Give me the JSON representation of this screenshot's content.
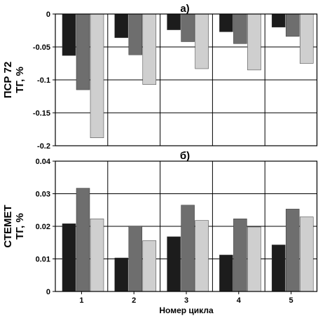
{
  "chart_data": [
    {
      "type": "bar",
      "title": "а)",
      "ylabel": [
        "ПСР 72",
        "ТГ, %"
      ],
      "categories": [
        "1",
        "2",
        "3",
        "4",
        "5"
      ],
      "ylim": [
        -0.2,
        0
      ],
      "yticks": [
        0,
        -0.05,
        -0.1,
        -0.15,
        -0.2
      ],
      "ytick_labels": [
        "0",
        "-0.05",
        "-0.1",
        "-0.15",
        "-0.2"
      ],
      "grid": true,
      "series": [
        {
          "values": [
            -0.063,
            -0.036,
            -0.024,
            -0.027,
            -0.02
          ],
          "color": "#1c1c1c"
        },
        {
          "values": [
            -0.115,
            -0.062,
            -0.042,
            -0.045,
            -0.034
          ],
          "color": "#6e6e6e"
        },
        {
          "values": [
            -0.188,
            -0.107,
            -0.083,
            -0.085,
            -0.075
          ],
          "color": "#cfcfcf"
        }
      ]
    },
    {
      "type": "bar",
      "title": "б)",
      "ylabel": [
        "СТЕМЕТ",
        "ТГ, %"
      ],
      "xlabel": "Номер цикла",
      "categories": [
        "1",
        "2",
        "3",
        "4",
        "5"
      ],
      "ylim": [
        0,
        0.04
      ],
      "yticks": [
        0,
        0.01,
        0.02,
        0.03,
        0.04
      ],
      "ytick_labels": [
        "0",
        "0.01",
        "0.02",
        "0.03",
        "0.04"
      ],
      "grid": true,
      "series": [
        {
          "values": [
            0.0208,
            0.0103,
            0.0168,
            0.0112,
            0.0143
          ],
          "color": "#1c1c1c"
        },
        {
          "values": [
            0.0317,
            0.0201,
            0.0265,
            0.0223,
            0.0253
          ],
          "color": "#6e6e6e"
        },
        {
          "values": [
            0.0223,
            0.0156,
            0.0218,
            0.0198,
            0.0229
          ],
          "color": "#cfcfcf"
        }
      ]
    }
  ]
}
